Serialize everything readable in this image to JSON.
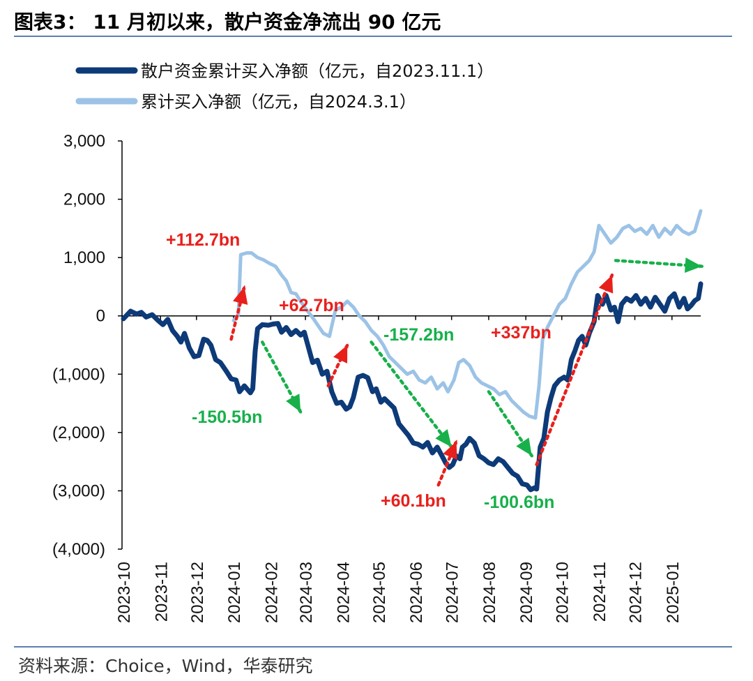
{
  "header": {
    "title": "图表3： 11 月初以来，散户资金净流出 90 亿元"
  },
  "footer": {
    "source": "资料来源：Choice，Wind，华泰研究"
  },
  "colors": {
    "dark_series": "#0d3a78",
    "light_series": "#9cc3e6",
    "up_arrow": "#e8201c",
    "down_arrow": "#17b04a",
    "rule": "#5b7fb0"
  },
  "chart_data": {
    "type": "line",
    "ylim": [
      -4000,
      3000
    ],
    "y_ticks": [
      3000,
      2000,
      1000,
      0,
      -1000,
      -2000,
      -3000,
      -4000
    ],
    "y_tick_labels": [
      "3,000",
      "2,000",
      "1,000",
      "0",
      "(1,000)",
      "(2,000)",
      "(3,000)",
      "(4,000)"
    ],
    "x_tick_labels": [
      "2023-10",
      "2023-11",
      "2023-12",
      "2024-01",
      "2024-02",
      "2024-03",
      "2024-04",
      "2024-05",
      "2024-06",
      "2024-07",
      "2024-08",
      "2024-09",
      "2024-10",
      "2024-11",
      "2024-12",
      "2025-01"
    ],
    "grid": false,
    "legend_position": "top-left",
    "series": [
      {
        "name": "散户资金累计买入净额（亿元，自2023.11.1）",
        "points": [
          [
            "2023-10-01",
            -50
          ],
          [
            "2023-10-07",
            80
          ],
          [
            "2023-10-12",
            30
          ],
          [
            "2023-10-16",
            60
          ],
          [
            "2023-10-20",
            -20
          ],
          [
            "2023-10-25",
            20
          ],
          [
            "2023-10-30",
            -80
          ],
          [
            "2023-11-03",
            -150
          ],
          [
            "2023-11-07",
            -60
          ],
          [
            "2023-11-11",
            -250
          ],
          [
            "2023-11-15",
            -350
          ],
          [
            "2023-11-18",
            -450
          ],
          [
            "2023-11-21",
            -300
          ],
          [
            "2023-11-25",
            -550
          ],
          [
            "2023-11-29",
            -700
          ],
          [
            "2023-12-03",
            -680
          ],
          [
            "2023-12-07",
            -400
          ],
          [
            "2023-12-10",
            -420
          ],
          [
            "2023-12-13",
            -500
          ],
          [
            "2023-12-17",
            -750
          ],
          [
            "2023-12-21",
            -800
          ],
          [
            "2023-12-26",
            -950
          ],
          [
            "2023-12-30",
            -1080
          ],
          [
            "2024-01-03",
            -1100
          ],
          [
            "2024-01-06",
            -1300
          ],
          [
            "2024-01-10",
            -1200
          ],
          [
            "2024-01-15",
            -1320
          ],
          [
            "2024-01-17",
            -1250
          ],
          [
            "2024-01-19",
            -600
          ],
          [
            "2024-01-21",
            -220
          ],
          [
            "2024-01-25",
            -150
          ],
          [
            "2024-01-30",
            -160
          ],
          [
            "2024-02-03",
            -140
          ],
          [
            "2024-02-07",
            -130
          ],
          [
            "2024-02-10",
            -280
          ],
          [
            "2024-02-14",
            -200
          ],
          [
            "2024-02-18",
            -320
          ],
          [
            "2024-02-22",
            -250
          ],
          [
            "2024-02-26",
            -330
          ],
          [
            "2024-02-29",
            -280
          ],
          [
            "2024-03-03",
            -500
          ],
          [
            "2024-03-07",
            -800
          ],
          [
            "2024-03-11",
            -760
          ],
          [
            "2024-03-15",
            -1000
          ],
          [
            "2024-03-19",
            -950
          ],
          [
            "2024-03-23",
            -1300
          ],
          [
            "2024-03-27",
            -1500
          ],
          [
            "2024-03-31",
            -1480
          ],
          [
            "2024-04-04",
            -1600
          ],
          [
            "2024-04-07",
            -1560
          ],
          [
            "2024-04-10",
            -1400
          ],
          [
            "2024-04-14",
            -1050
          ],
          [
            "2024-04-18",
            -1020
          ],
          [
            "2024-04-22",
            -1060
          ],
          [
            "2024-04-26",
            -1300
          ],
          [
            "2024-04-29",
            -1250
          ],
          [
            "2024-05-03",
            -1480
          ],
          [
            "2024-05-06",
            -1420
          ],
          [
            "2024-05-10",
            -1500
          ],
          [
            "2024-05-14",
            -1580
          ],
          [
            "2024-05-18",
            -1850
          ],
          [
            "2024-05-22",
            -1950
          ],
          [
            "2024-05-26",
            -2050
          ],
          [
            "2024-05-30",
            -2180
          ],
          [
            "2024-06-03",
            -2200
          ],
          [
            "2024-06-07",
            -2250
          ],
          [
            "2024-06-11",
            -2170
          ],
          [
            "2024-06-15",
            -2350
          ],
          [
            "2024-06-19",
            -2250
          ],
          [
            "2024-06-23",
            -2400
          ],
          [
            "2024-06-26",
            -2520
          ],
          [
            "2024-06-29",
            -2600
          ],
          [
            "2024-07-02",
            -2550
          ],
          [
            "2024-07-05",
            -2400
          ],
          [
            "2024-07-08",
            -2450
          ],
          [
            "2024-07-10",
            -2250
          ],
          [
            "2024-07-13",
            -2200
          ],
          [
            "2024-07-16",
            -2100
          ],
          [
            "2024-07-20",
            -2180
          ],
          [
            "2024-07-24",
            -2400
          ],
          [
            "2024-07-28",
            -2450
          ],
          [
            "2024-08-01",
            -2520
          ],
          [
            "2024-08-05",
            -2550
          ],
          [
            "2024-08-09",
            -2450
          ],
          [
            "2024-08-13",
            -2500
          ],
          [
            "2024-08-17",
            -2600
          ],
          [
            "2024-08-21",
            -2700
          ],
          [
            "2024-08-25",
            -2750
          ],
          [
            "2024-08-29",
            -2880
          ],
          [
            "2024-09-02",
            -2900
          ],
          [
            "2024-09-05",
            -2980
          ],
          [
            "2024-09-08",
            -2950
          ],
          [
            "2024-09-10",
            -2970
          ],
          [
            "2024-09-13",
            -2250
          ],
          [
            "2024-09-16",
            -2100
          ],
          [
            "2024-09-19",
            -1650
          ],
          [
            "2024-09-22",
            -1400
          ],
          [
            "2024-09-25",
            -1200
          ],
          [
            "2024-09-29",
            -1100
          ],
          [
            "2024-10-03",
            -1050
          ],
          [
            "2024-10-06",
            -1100
          ],
          [
            "2024-10-09",
            -750
          ],
          [
            "2024-10-12",
            -600
          ],
          [
            "2024-10-15",
            -420
          ],
          [
            "2024-10-18",
            -350
          ],
          [
            "2024-10-21",
            -500
          ],
          [
            "2024-10-24",
            -300
          ],
          [
            "2024-10-28",
            -100
          ],
          [
            "2024-10-31",
            350
          ],
          [
            "2024-11-04",
            200
          ],
          [
            "2024-11-07",
            350
          ],
          [
            "2024-11-11",
            100
          ],
          [
            "2024-11-14",
            150
          ],
          [
            "2024-11-17",
            -100
          ],
          [
            "2024-11-20",
            200
          ],
          [
            "2024-11-24",
            300
          ],
          [
            "2024-11-28",
            250
          ],
          [
            "2024-12-02",
            350
          ],
          [
            "2024-12-06",
            200
          ],
          [
            "2024-12-10",
            300
          ],
          [
            "2024-12-14",
            150
          ],
          [
            "2024-12-18",
            320
          ],
          [
            "2024-12-22",
            200
          ],
          [
            "2024-12-26",
            80
          ],
          [
            "2024-12-30",
            300
          ],
          [
            "2025-01-03",
            380
          ],
          [
            "2025-01-07",
            150
          ],
          [
            "2025-01-11",
            300
          ],
          [
            "2025-01-14",
            120
          ],
          [
            "2025-01-17",
            180
          ],
          [
            "2025-01-20",
            260
          ],
          [
            "2025-01-23",
            300
          ],
          [
            "2025-01-25",
            550
          ]
        ]
      },
      {
        "name": "累计买入净额（亿元，自2024.3.1）",
        "points": [
          [
            "2024-01-01",
            -80
          ],
          [
            "2024-01-05",
            20
          ],
          [
            "2024-01-07",
            1050
          ],
          [
            "2024-01-12",
            1080
          ],
          [
            "2024-01-16",
            1080
          ],
          [
            "2024-01-21",
            1000
          ],
          [
            "2024-01-26",
            960
          ],
          [
            "2024-01-31",
            900
          ],
          [
            "2024-02-05",
            850
          ],
          [
            "2024-02-10",
            700
          ],
          [
            "2024-02-14",
            600
          ],
          [
            "2024-02-18",
            400
          ],
          [
            "2024-02-22",
            380
          ],
          [
            "2024-02-26",
            250
          ],
          [
            "2024-03-02",
            100
          ],
          [
            "2024-03-06",
            0
          ],
          [
            "2024-03-11",
            -150
          ],
          [
            "2024-03-16",
            -300
          ],
          [
            "2024-03-21",
            -350
          ],
          [
            "2024-03-26",
            100
          ],
          [
            "2024-03-31",
            150
          ],
          [
            "2024-04-05",
            250
          ],
          [
            "2024-04-10",
            150
          ],
          [
            "2024-04-15",
            0
          ],
          [
            "2024-04-20",
            -100
          ],
          [
            "2024-04-25",
            -250
          ],
          [
            "2024-04-30",
            -350
          ],
          [
            "2024-05-05",
            -500
          ],
          [
            "2024-05-10",
            -700
          ],
          [
            "2024-05-15",
            -800
          ],
          [
            "2024-05-20",
            -900
          ],
          [
            "2024-05-25",
            -1000
          ],
          [
            "2024-05-30",
            -950
          ],
          [
            "2024-06-04",
            -1100
          ],
          [
            "2024-06-09",
            -1150
          ],
          [
            "2024-06-14",
            -1050
          ],
          [
            "2024-06-19",
            -1250
          ],
          [
            "2024-06-24",
            -1150
          ],
          [
            "2024-06-28",
            -1300
          ],
          [
            "2024-07-03",
            -1100
          ],
          [
            "2024-07-07",
            -800
          ],
          [
            "2024-07-11",
            -750
          ],
          [
            "2024-07-16",
            -850
          ],
          [
            "2024-07-21",
            -1050
          ],
          [
            "2024-07-26",
            -1150
          ],
          [
            "2024-07-31",
            -1200
          ],
          [
            "2024-08-05",
            -1250
          ],
          [
            "2024-08-10",
            -1350
          ],
          [
            "2024-08-15",
            -1300
          ],
          [
            "2024-08-20",
            -1450
          ],
          [
            "2024-08-25",
            -1550
          ],
          [
            "2024-08-30",
            -1650
          ],
          [
            "2024-09-04",
            -1720
          ],
          [
            "2024-09-09",
            -1750
          ],
          [
            "2024-09-12",
            -1200
          ],
          [
            "2024-09-15",
            -400
          ],
          [
            "2024-09-19",
            -200
          ],
          [
            "2024-09-24",
            0
          ],
          [
            "2024-09-29",
            200
          ],
          [
            "2024-10-04",
            300
          ],
          [
            "2024-10-09",
            550
          ],
          [
            "2024-10-14",
            750
          ],
          [
            "2024-10-19",
            850
          ],
          [
            "2024-10-24",
            950
          ],
          [
            "2024-10-28",
            1100
          ],
          [
            "2024-11-01",
            1550
          ],
          [
            "2024-11-06",
            1400
          ],
          [
            "2024-11-11",
            1250
          ],
          [
            "2024-11-16",
            1350
          ],
          [
            "2024-11-21",
            1500
          ],
          [
            "2024-11-26",
            1550
          ],
          [
            "2024-12-01",
            1450
          ],
          [
            "2024-12-06",
            1500
          ],
          [
            "2024-12-11",
            1400
          ],
          [
            "2024-12-16",
            1550
          ],
          [
            "2024-12-21",
            1350
          ],
          [
            "2024-12-26",
            1500
          ],
          [
            "2024-12-31",
            1400
          ],
          [
            "2025-01-05",
            1550
          ],
          [
            "2025-01-10",
            1450
          ],
          [
            "2025-01-15",
            1400
          ],
          [
            "2025-01-20",
            1450
          ],
          [
            "2025-01-25",
            1800
          ]
        ]
      }
    ],
    "annotations": [
      {
        "text": "+112.7bn",
        "direction": "up",
        "from": [
          "2023-12-30",
          -400
        ],
        "to": [
          "2024-01-10",
          500
        ]
      },
      {
        "text": "-150.5bn",
        "direction": "down",
        "from": [
          "2024-01-25",
          -450
        ],
        "to": [
          "2024-02-26",
          -1650
        ]
      },
      {
        "text": "+62.7bn",
        "direction": "up",
        "from": [
          "2024-03-20",
          -1200
        ],
        "to": [
          "2024-04-05",
          -500
        ]
      },
      {
        "text": "-157.2bn",
        "direction": "down",
        "from": [
          "2024-04-25",
          -450
        ],
        "to": [
          "2024-07-01",
          -2250
        ]
      },
      {
        "text": "+60.1bn",
        "direction": "up",
        "from": [
          "2024-06-20",
          -2900
        ],
        "to": [
          "2024-07-05",
          -2150
        ]
      },
      {
        "text": "-100.6bn",
        "direction": "down",
        "from": [
          "2024-08-01",
          -1300
        ],
        "to": [
          "2024-09-06",
          -2400
        ]
      },
      {
        "text": "+337bn",
        "direction": "up",
        "from": [
          "2024-09-10",
          -2550
        ],
        "to": [
          "2024-11-12",
          700
        ]
      },
      {
        "text": "",
        "direction": "down",
        "from": [
          "2024-11-15",
          950
        ],
        "to": [
          "2025-01-26",
          850
        ]
      }
    ]
  }
}
